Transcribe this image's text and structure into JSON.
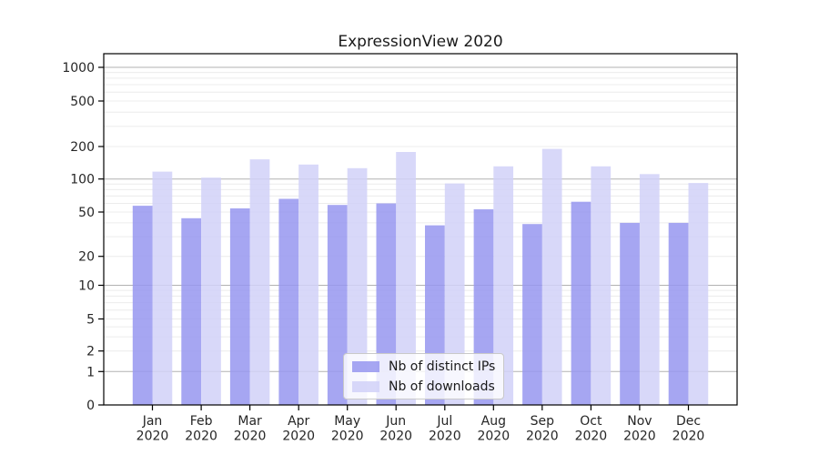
{
  "title": "ExpressionView 2020",
  "chart_data": {
    "type": "bar",
    "title": "ExpressionView 2020",
    "categories": [
      "Jan",
      "Feb",
      "Mar",
      "Apr",
      "May",
      "Jun",
      "Jul",
      "Aug",
      "Sep",
      "Oct",
      "Nov",
      "Dec"
    ],
    "category_year_line": "2020",
    "series": [
      {
        "name": "Nb of distinct IPs",
        "color": "#9696f0",
        "values": [
          57,
          44,
          54,
          66,
          58,
          60,
          38,
          53,
          39,
          62,
          40,
          40
        ]
      },
      {
        "name": "Nb of downloads",
        "color": "#d1d1f8",
        "values": [
          117,
          103,
          152,
          136,
          126,
          178,
          91,
          131,
          190,
          131,
          111,
          92
        ]
      }
    ],
    "xlabel": "",
    "ylabel": "",
    "yscale": "symlog",
    "ylim": [
      0,
      1000
    ],
    "yticks": [
      0,
      1,
      2,
      5,
      10,
      20,
      50,
      100,
      200,
      500,
      1000
    ],
    "grid": true,
    "legend_position": "lower-center",
    "colors": {
      "major_gridline": "#b2b2b2",
      "minor_gridline": "#ececec",
      "spine": "#000000",
      "tick_label": "#262626",
      "bar_opacity": 0.85
    }
  }
}
